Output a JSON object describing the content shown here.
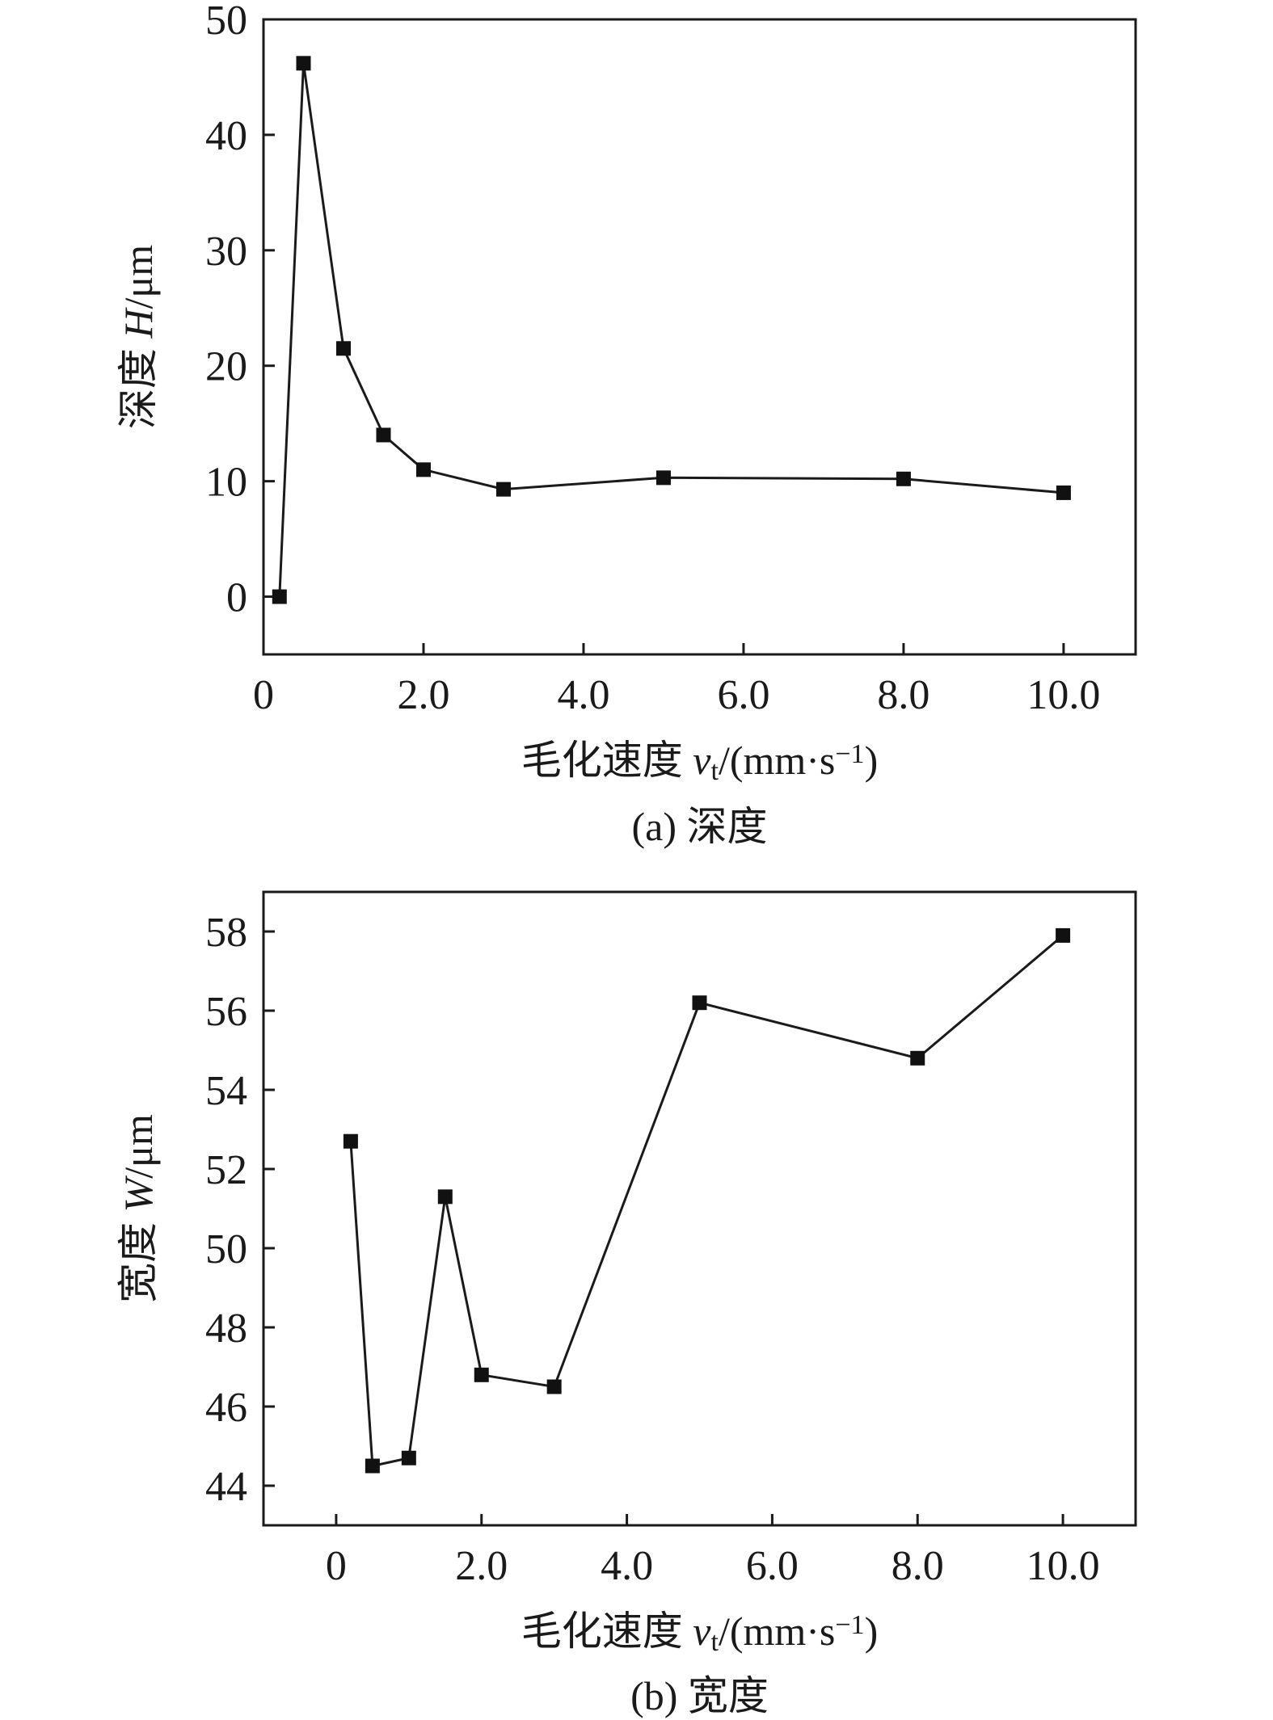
{
  "colors": {
    "line": "#1a1a1a",
    "marker": "#111111",
    "background": "#ffffff"
  },
  "chart_data": [
    {
      "type": "line",
      "caption": "(a) 深度",
      "xlabel": "毛化速度 vt/(mm·s−1)",
      "xlabel_parts": {
        "prefix": "毛化速度 ",
        "var": "v",
        "sub": "t",
        "mid": "/(mm·s",
        "sup": "−1",
        "suffix": ")"
      },
      "ylabel": "深度 H/μm",
      "ylabel_parts": {
        "prefix": "深度 ",
        "var": "H",
        "suffix": "/μm"
      },
      "xlim": [
        0,
        10.9
      ],
      "ylim": [
        -5,
        50
      ],
      "xticks": [
        0,
        2,
        4,
        6,
        8,
        10
      ],
      "xtick_labels": [
        "0",
        "2.0",
        "4.0",
        "6.0",
        "8.0",
        "10.0"
      ],
      "yticks": [
        0,
        10,
        20,
        30,
        40,
        50
      ],
      "ytick_labels": [
        "0",
        "10",
        "20",
        "30",
        "40",
        "50"
      ],
      "grid": false,
      "marker": "square",
      "x": [
        0.2,
        0.5,
        1.0,
        1.5,
        2.0,
        3.0,
        5.0,
        8.0,
        10.0
      ],
      "y": [
        0,
        46.2,
        21.5,
        14.0,
        11.0,
        9.3,
        10.3,
        10.2,
        9.0
      ]
    },
    {
      "type": "line",
      "caption": "(b) 宽度",
      "xlabel": "毛化速度 vt/(mm·s−1)",
      "xlabel_parts": {
        "prefix": "毛化速度 ",
        "var": "v",
        "sub": "t",
        "mid": "/(mm·s",
        "sup": "−1",
        "suffix": ")"
      },
      "ylabel": "宽度 W/μm",
      "ylabel_parts": {
        "prefix": "宽度 ",
        "var": "W",
        "suffix": "/μm"
      },
      "xlim": [
        -1,
        11
      ],
      "ylim": [
        43,
        59
      ],
      "xticks": [
        0,
        2,
        4,
        6,
        8,
        10
      ],
      "xtick_labels": [
        "0",
        "2.0",
        "4.0",
        "6.0",
        "8.0",
        "10.0"
      ],
      "yticks": [
        44,
        46,
        48,
        50,
        52,
        54,
        56,
        58
      ],
      "ytick_labels": [
        "44",
        "46",
        "48",
        "50",
        "52",
        "54",
        "56",
        "58"
      ],
      "grid": false,
      "marker": "square",
      "x": [
        0.2,
        0.5,
        1.0,
        1.5,
        2.0,
        3.0,
        5.0,
        8.0,
        10.0
      ],
      "y": [
        52.7,
        44.5,
        44.7,
        51.3,
        46.8,
        46.5,
        56.2,
        54.8,
        57.9
      ]
    }
  ]
}
